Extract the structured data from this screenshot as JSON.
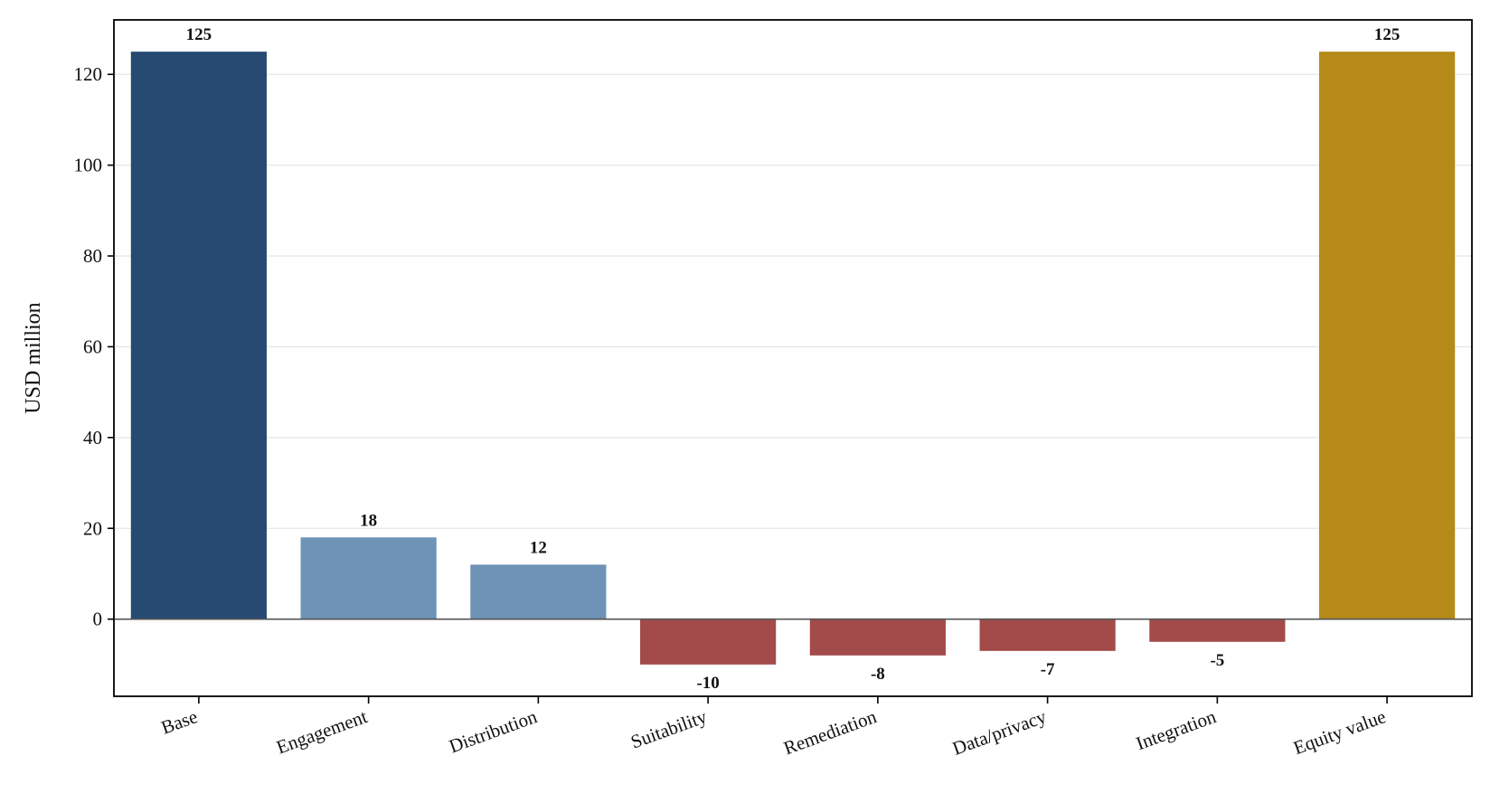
{
  "chart_data": {
    "type": "bar",
    "subtype": "waterfall-components",
    "title": "",
    "xlabel": "",
    "ylabel": "USD million",
    "ylim": [
      -17,
      132
    ],
    "yticks": [
      0,
      20,
      40,
      60,
      80,
      100,
      120
    ],
    "grid": "horizontal",
    "legend": "none",
    "categories": [
      "Base",
      "Engagement",
      "Distribution",
      "Suitability",
      "Remediation",
      "Data/privacy",
      "Integration",
      "Equity value"
    ],
    "values": [
      125,
      18,
      12,
      -10,
      -8,
      -7,
      -5,
      125
    ],
    "data_labels": [
      "125",
      "18",
      "12",
      "-10",
      "-8",
      "-7",
      "-5",
      "125"
    ],
    "bar_kinds": [
      "base",
      "positive",
      "positive",
      "negative",
      "negative",
      "negative",
      "negative",
      "total"
    ],
    "colors": {
      "base": "#264a72",
      "positive": "#6e93b7",
      "negative": "#a34a4a",
      "total": "#b58a18"
    }
  }
}
